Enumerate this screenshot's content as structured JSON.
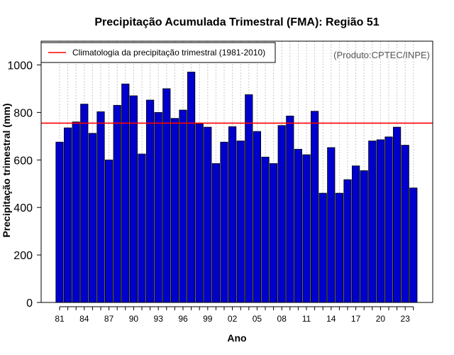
{
  "chart_data": {
    "type": "bar",
    "title": "Precipitação Acumulada Trimestral (FMA): Região 51",
    "xlabel": "Ano",
    "ylabel": "Precipitação trimestral (mm)",
    "ylim": [
      0,
      1100
    ],
    "yticks": [
      0,
      200,
      400,
      600,
      800,
      1000
    ],
    "ytick_labels": [
      "0",
      "200",
      "400",
      "600",
      "800",
      "1000"
    ],
    "categories": [
      "1981",
      "1982",
      "1983",
      "1984",
      "1985",
      "1986",
      "1987",
      "1988",
      "1989",
      "1990",
      "1991",
      "1992",
      "1993",
      "1994",
      "1995",
      "1996",
      "1997",
      "1998",
      "1999",
      "2000",
      "2001",
      "2002",
      "2003",
      "2004",
      "2005",
      "2006",
      "2007",
      "2008",
      "2009",
      "2010",
      "2011",
      "2012",
      "2013",
      "2014",
      "2015",
      "2016",
      "2017",
      "2018",
      "2019",
      "2020",
      "2021",
      "2022",
      "2023",
      "2024"
    ],
    "values": [
      675,
      735,
      760,
      835,
      712,
      803,
      600,
      830,
      920,
      870,
      625,
      852,
      800,
      900,
      775,
      810,
      970,
      752,
      738,
      585,
      675,
      740,
      680,
      875,
      720,
      612,
      585,
      745,
      785,
      645,
      622,
      805,
      460,
      652,
      460,
      517,
      575,
      555,
      680,
      685,
      697,
      738,
      662,
      482
    ],
    "xtick_labels": [
      "81",
      "84",
      "87",
      "90",
      "93",
      "96",
      "99",
      "02",
      "05",
      "08",
      "11",
      "14",
      "17",
      "20",
      "23"
    ],
    "xtick_category_index": [
      0,
      3,
      6,
      9,
      12,
      15,
      18,
      21,
      24,
      27,
      30,
      33,
      36,
      39,
      42
    ],
    "climatology": {
      "value": 755,
      "label": "Climatologia da precipitação trimestral (1981-2010)",
      "color": "#ff0000"
    },
    "bar_color": "#0000cc",
    "legend_position": "top-left",
    "credit": "(Produto:CPTEC/INPE)",
    "grid": "vertical dotted"
  }
}
